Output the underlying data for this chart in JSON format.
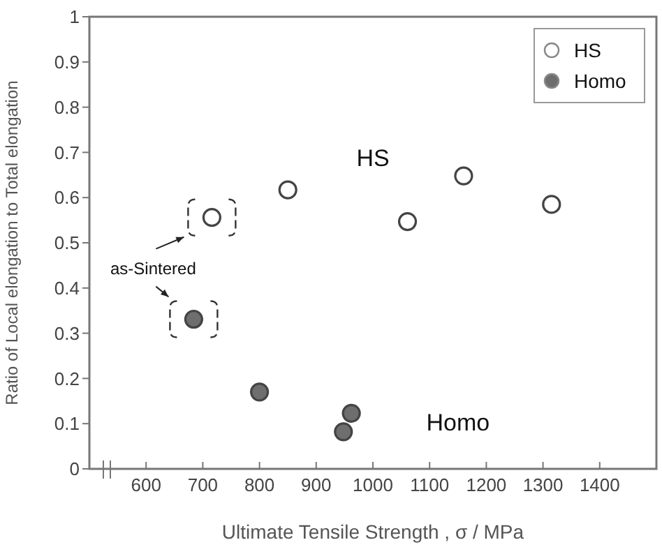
{
  "chart_data": {
    "type": "scatter",
    "xlabel": "Ultimate Tensile Strength , σ / MPa",
    "ylabel": "Ratio of Local elongation to Total elongation",
    "series": [
      {
        "name": "HS",
        "color": "#ffffff",
        "x": [
          716,
          850,
          1061,
          1160,
          1315
        ],
        "values": [
          0.556,
          0.617,
          0.547,
          0.648,
          0.585
        ]
      },
      {
        "name": "Homo",
        "color": "#6e6e6e",
        "x": [
          684,
          800,
          962,
          948
        ],
        "values": [
          0.331,
          0.17,
          0.123,
          0.082
        ]
      }
    ],
    "xlim": [
      500,
      1500
    ],
    "xticks": [
      600,
      700,
      800,
      900,
      1000,
      1100,
      1200,
      1300,
      1400
    ],
    "ylim": [
      0,
      1
    ],
    "yticks": [
      0,
      0.1,
      0.2,
      0.3,
      0.4,
      0.5,
      0.6,
      0.7,
      0.8,
      0.9,
      1
    ],
    "annotations": [
      "HS",
      "Homo",
      "as-Sintered"
    ],
    "marker": "circle",
    "grid": false,
    "legend": "top right"
  }
}
